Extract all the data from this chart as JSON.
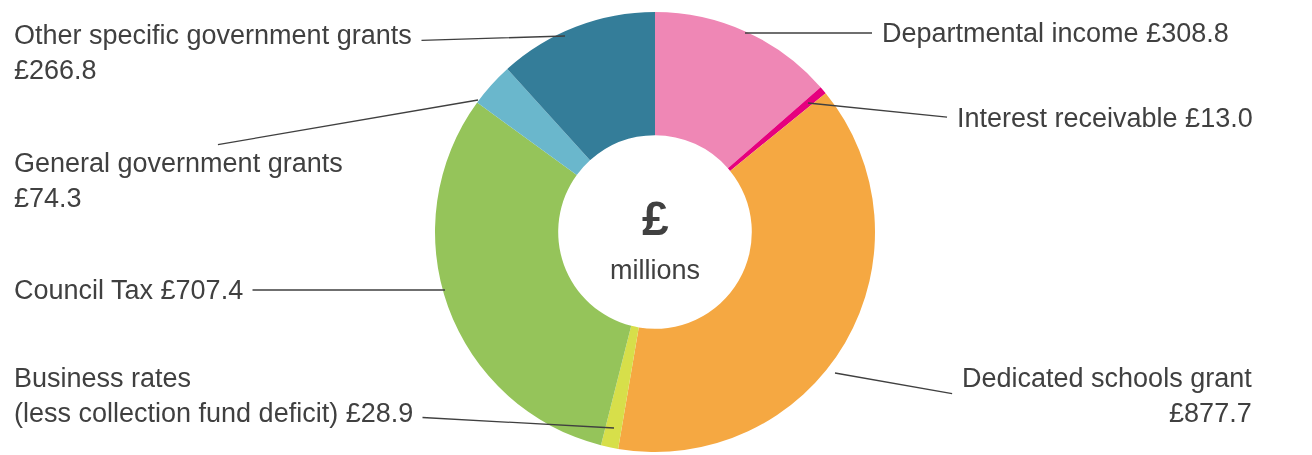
{
  "chart_data": {
    "type": "donut",
    "categories": [
      "Departmental income",
      "Interest receivable",
      "Dedicated schools grant",
      "Business rates (less collection fund deficit)",
      "Council Tax",
      "General government grants",
      "Other specific government grants"
    ],
    "values": [
      308.8,
      13.0,
      877.7,
      28.9,
      707.4,
      74.3,
      266.8
    ],
    "value_labels": [
      "£308.8",
      "£13.0",
      "£877.7",
      "£28.9",
      "£707.4",
      "£74.3",
      "£266.8"
    ],
    "colors": [
      "#ef87b5",
      "#e6007e",
      "#f5a842",
      "#d7df4a",
      "#95c45a",
      "#6ab7cc",
      "#347d99"
    ],
    "annotations": [
      "£",
      "millions"
    ],
    "legend": false
  }
}
